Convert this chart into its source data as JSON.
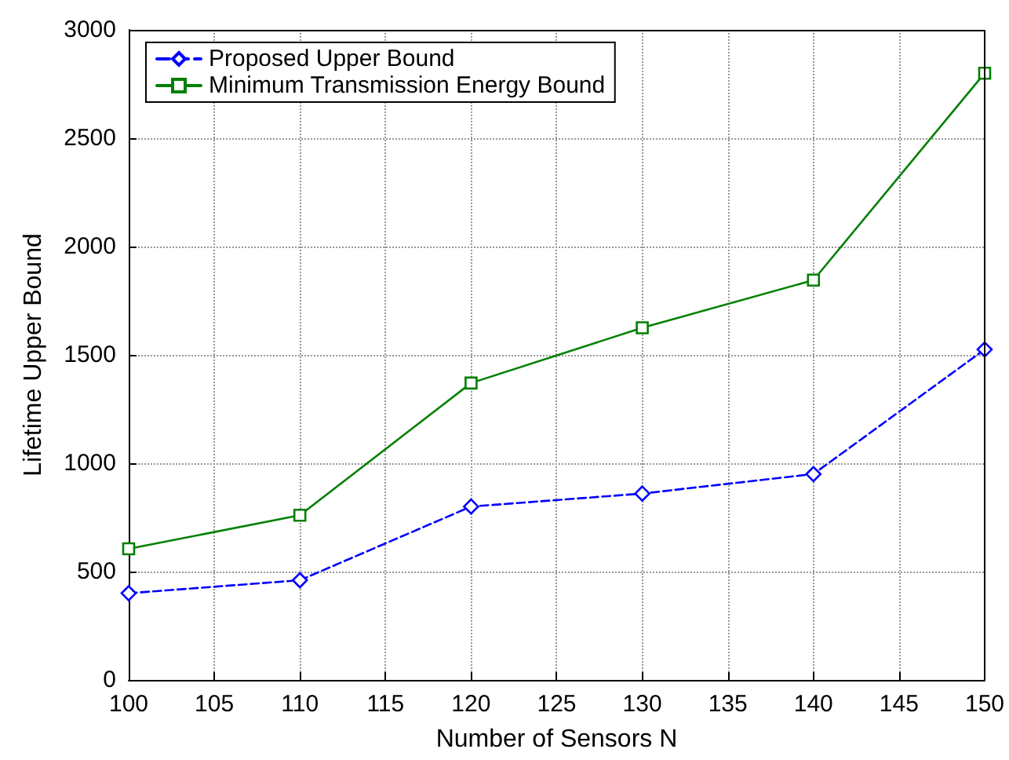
{
  "chart_data": {
    "type": "line",
    "xlabel": "Number of Sensors N",
    "ylabel": "Lifetime Upper Bound",
    "x": [
      100,
      110,
      120,
      130,
      140,
      150
    ],
    "series": [
      {
        "name": "Proposed Upper Bound",
        "color": "#0000ff",
        "values": [
          400,
          460,
          800,
          860,
          950,
          1525
        ],
        "marker": "diamond",
        "line_style": "dashed"
      },
      {
        "name": "Minimum Transmission Energy Bound",
        "color": "#008000",
        "values": [
          605,
          760,
          1370,
          1625,
          1845,
          2800
        ],
        "marker": "square",
        "line_style": "solid"
      }
    ],
    "xlim": [
      100,
      150
    ],
    "xticks": [
      100,
      105,
      110,
      115,
      120,
      125,
      130,
      135,
      140,
      145,
      150
    ],
    "ylim": [
      0,
      3000
    ],
    "yticks": [
      0,
      500,
      1000,
      1500,
      2000,
      2500,
      3000
    ],
    "grid": true,
    "legend": "top left"
  }
}
